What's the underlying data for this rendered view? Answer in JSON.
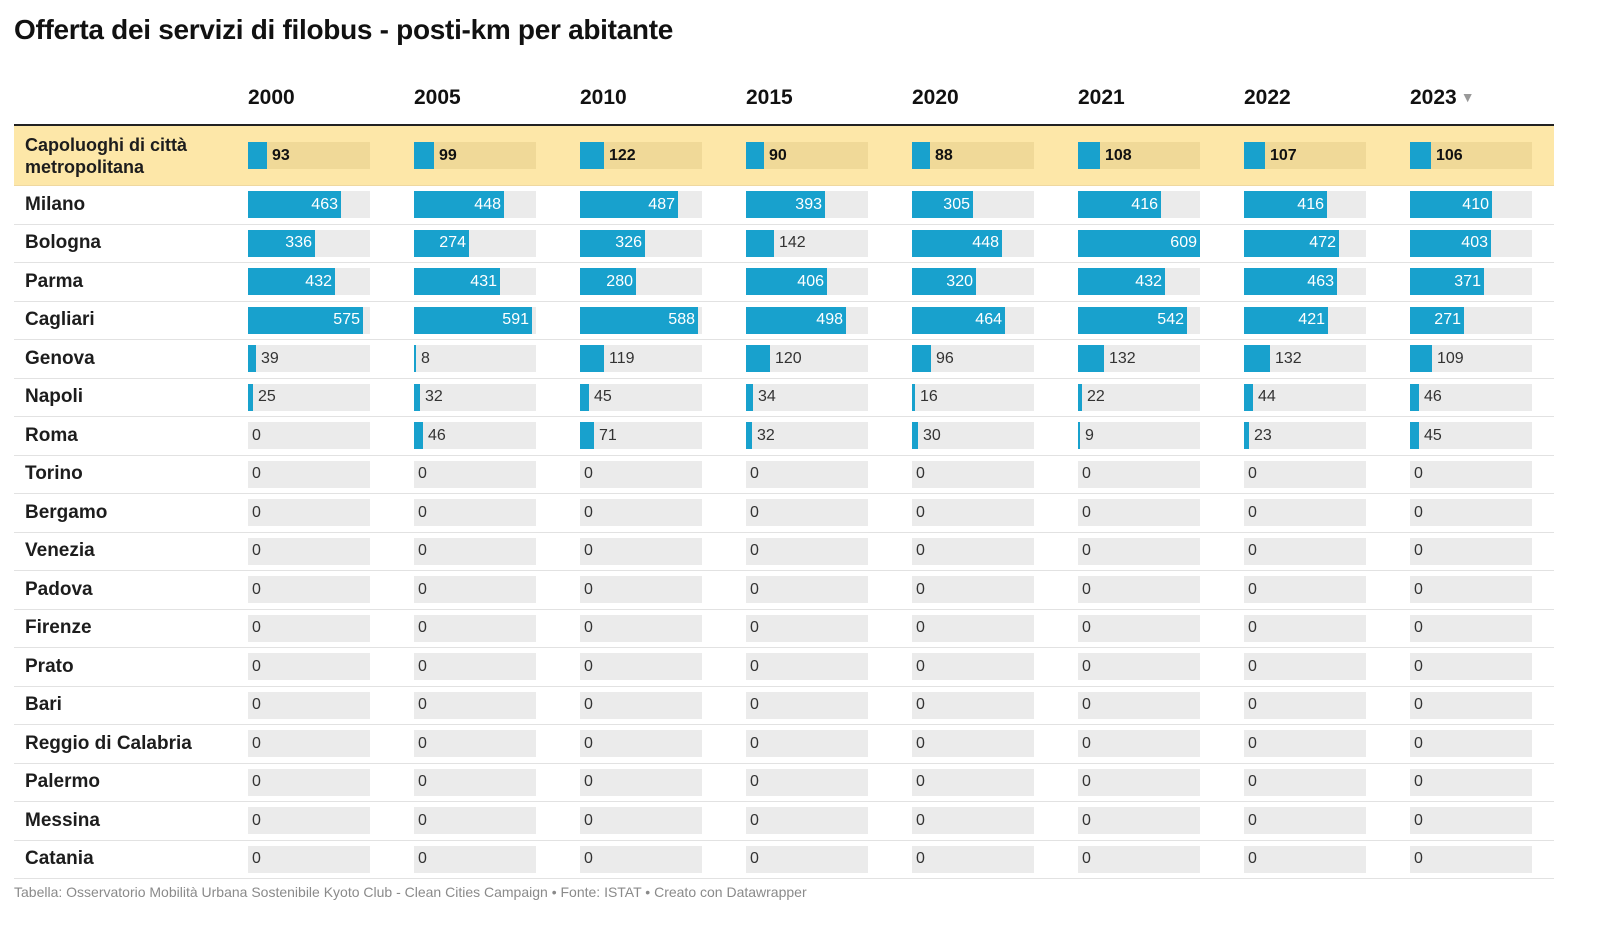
{
  "title": "Offerta dei servizi di filobus - posti-km per abitante",
  "footer": "Tabella: Osservatorio Mobilità Urbana Sostenibile Kyoto Club - Clean Cities Campaign • Fonte: ISTAT • Creato con Datawrapper",
  "colors": {
    "bar": "#18a1cd",
    "highlight_row": "#fde7a8",
    "cell_bg": "#ebebeb"
  },
  "sort_icon": "sort-descending-icon",
  "chart_data": {
    "type": "table",
    "title": "Offerta dei servizi di filobus - posti-km per abitante",
    "columns": [
      "2000",
      "2005",
      "2010",
      "2015",
      "2020",
      "2021",
      "2022",
      "2023"
    ],
    "sorted_by": "2023",
    "max_value": 609,
    "rows": [
      {
        "name": "Capoluoghi di città metropolitana",
        "highlight": true,
        "values": [
          93,
          99,
          122,
          90,
          88,
          108,
          107,
          106
        ]
      },
      {
        "name": "Milano",
        "values": [
          463,
          448,
          487,
          393,
          305,
          416,
          416,
          410
        ]
      },
      {
        "name": "Bologna",
        "values": [
          336,
          274,
          326,
          142,
          448,
          609,
          472,
          403
        ]
      },
      {
        "name": "Parma",
        "values": [
          432,
          431,
          280,
          406,
          320,
          432,
          463,
          371
        ]
      },
      {
        "name": "Cagliari",
        "values": [
          575,
          591,
          588,
          498,
          464,
          542,
          421,
          271
        ]
      },
      {
        "name": "Genova",
        "values": [
          39,
          8,
          119,
          120,
          96,
          132,
          132,
          109
        ]
      },
      {
        "name": "Napoli",
        "values": [
          25,
          32,
          45,
          34,
          16,
          22,
          44,
          46
        ]
      },
      {
        "name": "Roma",
        "values": [
          0,
          46,
          71,
          32,
          30,
          9,
          23,
          45
        ]
      },
      {
        "name": "Torino",
        "values": [
          0,
          0,
          0,
          0,
          0,
          0,
          0,
          0
        ]
      },
      {
        "name": "Bergamo",
        "values": [
          0,
          0,
          0,
          0,
          0,
          0,
          0,
          0
        ]
      },
      {
        "name": "Venezia",
        "values": [
          0,
          0,
          0,
          0,
          0,
          0,
          0,
          0
        ]
      },
      {
        "name": "Padova",
        "values": [
          0,
          0,
          0,
          0,
          0,
          0,
          0,
          0
        ]
      },
      {
        "name": "Firenze",
        "values": [
          0,
          0,
          0,
          0,
          0,
          0,
          0,
          0
        ]
      },
      {
        "name": "Prato",
        "values": [
          0,
          0,
          0,
          0,
          0,
          0,
          0,
          0
        ]
      },
      {
        "name": "Bari",
        "values": [
          0,
          0,
          0,
          0,
          0,
          0,
          0,
          0
        ]
      },
      {
        "name": "Reggio di Calabria",
        "values": [
          0,
          0,
          0,
          0,
          0,
          0,
          0,
          0
        ]
      },
      {
        "name": "Palermo",
        "values": [
          0,
          0,
          0,
          0,
          0,
          0,
          0,
          0
        ]
      },
      {
        "name": "Messina",
        "values": [
          0,
          0,
          0,
          0,
          0,
          0,
          0,
          0
        ]
      },
      {
        "name": "Catania",
        "values": [
          0,
          0,
          0,
          0,
          0,
          0,
          0,
          0
        ]
      }
    ]
  }
}
